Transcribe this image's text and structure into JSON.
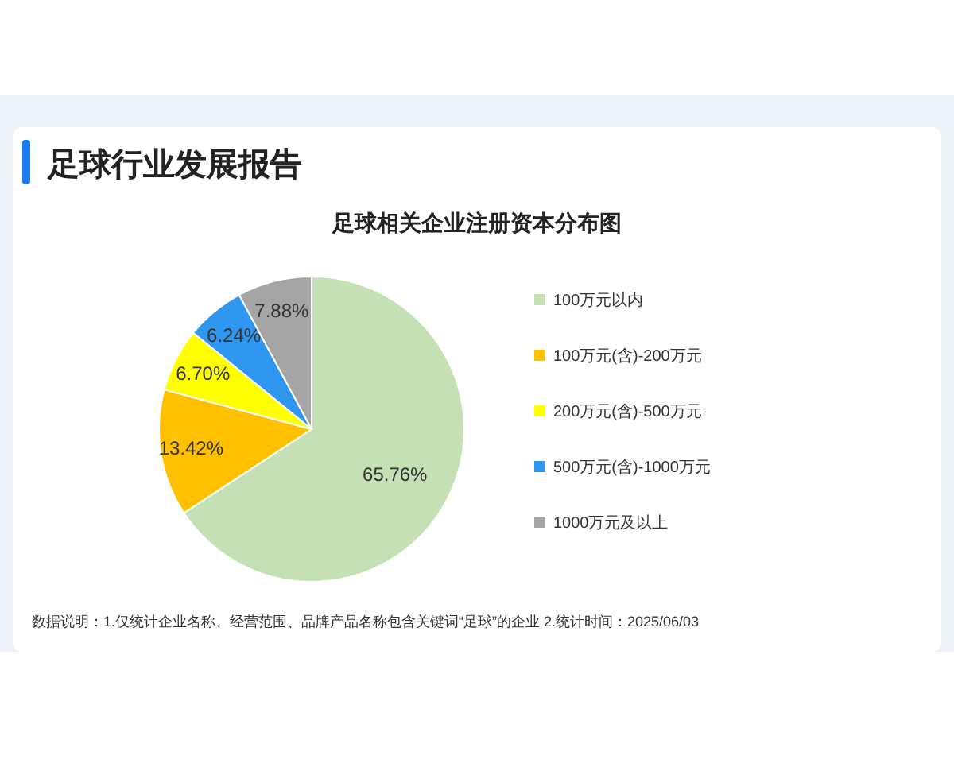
{
  "chart_data": {
    "type": "pie",
    "title": "足球行业发展报告",
    "subtitle": "足球相关企业注册资本分布图",
    "categories": [
      "100万元以内",
      "100万元(含)-200万元",
      "200万元(含)-500万元",
      "500万元(含)-1000万元",
      "1000万元及以上"
    ],
    "values": [
      65.76,
      13.42,
      6.7,
      6.24,
      7.88
    ],
    "value_labels": [
      "65.76%",
      "13.42%",
      "6.70%",
      "6.24%",
      "7.88%"
    ],
    "colors": [
      "#c5e0b4",
      "#ffc000",
      "#ffff00",
      "#2f97ef",
      "#a5a5a5"
    ],
    "legend": "right",
    "annotations": [
      "数据说明：1.仅统计企业名称、经营范围、品牌产品名称包含关键词“足球”的企业  2.统计时间：2025/06/03"
    ]
  }
}
